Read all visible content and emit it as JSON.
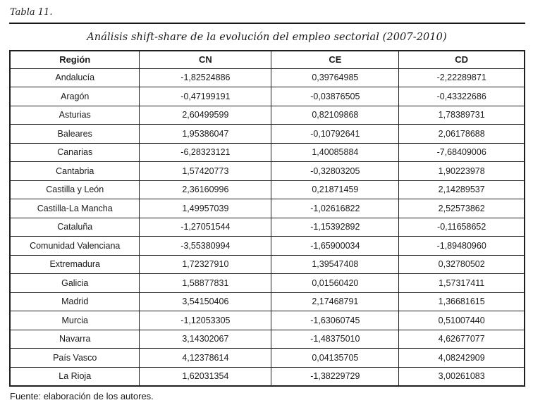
{
  "page": {
    "table_label": "Tabla 11.",
    "title": "Análisis shift-share de la evolución del empleo sectorial (2007-2010)",
    "source": "Fuente: elaboración de los autores."
  },
  "chart_data": {
    "type": "table",
    "columns": [
      "Región",
      "CN",
      "CE",
      "CD"
    ],
    "rows": [
      [
        "Andalucía",
        "-1,82524886",
        "0,39764985",
        "-2,22289871"
      ],
      [
        "Aragón",
        "-0,47199191",
        "-0,03876505",
        "-0,43322686"
      ],
      [
        "Asturias",
        "2,60499599",
        "0,82109868",
        "1,78389731"
      ],
      [
        "Baleares",
        "1,95386047",
        "-0,10792641",
        "2,06178688"
      ],
      [
        "Canarias",
        "-6,28323121",
        "1,40085884",
        "-7,68409006"
      ],
      [
        "Cantabria",
        "1,57420773",
        "-0,32803205",
        "1,90223978"
      ],
      [
        "Castilla y León",
        "2,36160996",
        "0,21871459",
        "2,14289537"
      ],
      [
        "Castilla-La Mancha",
        "1,49957039",
        "-1,02616822",
        "2,52573862"
      ],
      [
        "Cataluña",
        "-1,27051544",
        "-1,15392892",
        "-0,11658652"
      ],
      [
        "Comunidad Valenciana",
        "-3,55380994",
        "-1,65900034",
        "-1,89480960"
      ],
      [
        "Extremadura",
        "1,72327910",
        "1,39547408",
        "0,32780502"
      ],
      [
        "Galicia",
        "1,58877831",
        "0,01560420",
        "1,57317411"
      ],
      [
        "Madrid",
        "3,54150406",
        "2,17468791",
        "1,36681615"
      ],
      [
        "Murcia",
        "-1,12053305",
        "-1,63060745",
        "0,51007440"
      ],
      [
        "Navarra",
        "3,14302067",
        "-1,48375010",
        "4,62677077"
      ],
      [
        "País Vasco",
        "4,12378614",
        "0,04135705",
        "4,08242909"
      ],
      [
        "La Rioja",
        "1,62031354",
        "-1,38229729",
        "3,00261083"
      ]
    ]
  }
}
